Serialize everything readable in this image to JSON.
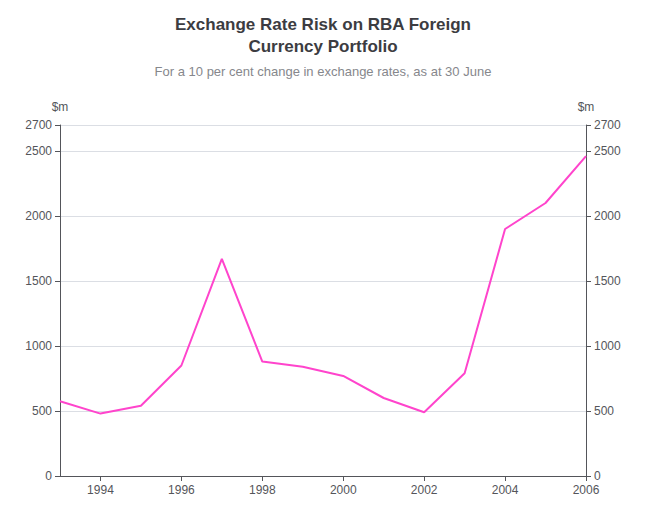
{
  "chart_data": {
    "type": "line",
    "title": "Exchange Rate Risk on RBA Foreign\nCurrency Portfolio",
    "subtitle": "For a 10 per cent change in exchange rates, as at 30 June",
    "ylabel": "$m",
    "y2label": "$m",
    "x": [
      1993,
      1994,
      1995,
      1996,
      1997,
      1998,
      1999,
      2000,
      2001,
      2002,
      2003,
      2004,
      2005,
      2006
    ],
    "values": [
      575,
      480,
      540,
      850,
      1670,
      880,
      840,
      770,
      600,
      490,
      790,
      1900,
      2100,
      2460
    ],
    "color": "#FF44CC",
    "xlim": [
      1993,
      2006
    ],
    "xticks": [
      1994,
      1996,
      1998,
      2000,
      2002,
      2004,
      2006
    ],
    "ylim": [
      0,
      2700
    ],
    "yticks": [
      0,
      500,
      1000,
      1500,
      2000,
      2500
    ],
    "y2lim": [
      0,
      2700
    ],
    "y2ticks": [
      0,
      500,
      1000,
      1500,
      2000,
      2500
    ],
    "grid": true
  }
}
